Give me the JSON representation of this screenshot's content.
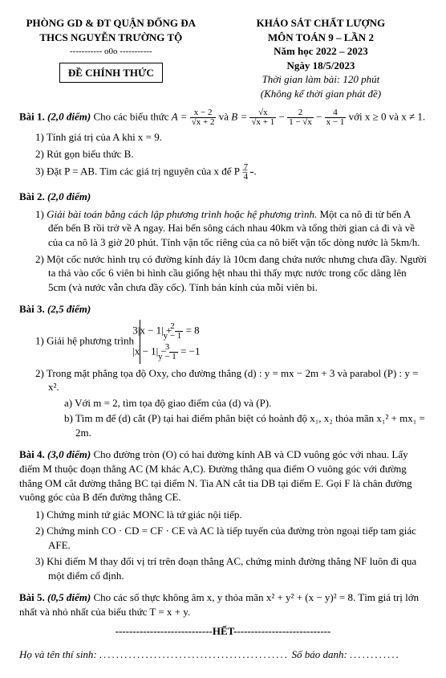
{
  "header": {
    "left1": "PHÒNG GD & ĐT QUẬN ĐỐNG ĐA",
    "left2": "THCS NGUYỄN TRƯỜNG TỘ",
    "ooo": "----------- o0o -----------",
    "box": "ĐỀ CHÍNH THỨC",
    "right1": "KHẢO SÁT CHẤT LƯỢNG",
    "right2": "MÔN TOÁN 9 – LẦN 2",
    "right3": "Năm học 2022 – 2023",
    "right4": "Ngày 18/5/2023",
    "right5": "Thời gian làm bài: 120 phút",
    "right6": "(Không kể thời gian phát đề)"
  },
  "b1": {
    "title": "Bài 1.",
    "pts": "(2,0 điểm)",
    "intro": " Cho các biểu thức ",
    "A": "A = ",
    "Anum": "x − 2",
    "Aden": "√x + 2",
    "and": " và ",
    "B": "B = ",
    "B1num": "√x",
    "B1den": "√x + 1",
    "B2num": "2",
    "B2den": "1 − √x",
    "B3num": "4",
    "B3den": "x − 1",
    "cond": " với x ≥ 0 và x ≠ 1.",
    "i1": "1)  Tính giá trị của A khi x = 9.",
    "i2": "2)  Rút gọn biểu thức B.",
    "i3a": "3)  Đặt P = AB. Tìm các giá trị nguyên của x để P = ",
    "i3num": "7",
    "i3den": "4",
    "i3b": "."
  },
  "b2": {
    "title": "Bài 2.",
    "pts": "(2,0 điểm)",
    "i1a": "1)  ",
    "i1em": "Giải bài toán bằng cách lập phương trình hoặc hệ phương trình.",
    "i1b": " Một ca nô đi từ bến A đến bến B rồi trở về A ngay. Hai bến sông cách nhau 40km và tổng thời gian cả đi và về của ca nô là 3 giờ 20 phút. Tính vận tốc riêng của ca nô biết vận tốc dòng nước là 5km/h.",
    "i2": "2)  Một cốc nước hình trụ có đường kính đáy là 10cm đang chứa nước nhưng chưa đầy. Người ta thả vào cốc 6 viên bi hình cầu giống hệt nhau thì thấy mực nước trong cốc dâng lên 5cm (và nước vẫn chưa đầy cốc). Tính bán kính của mỗi viên bi."
  },
  "b3": {
    "title": "Bài 3.",
    "pts": "(2,5 điểm)",
    "i1": "1)  Giải hệ phương trình ",
    "eq1a": "3|x − 1| + ",
    "eq1num": "2",
    "eq1den": "y − 1",
    "eq1b": " = 8",
    "eq2a": "|x − 1| − ",
    "eq2num": "3",
    "eq2den": "y − 1",
    "eq2b": " = −1",
    "i2": "2)  Trong mặt phẳng tọa độ Oxy, cho đường thẳng (d) : y = mx − 2m + 3 và parabol (P) : y = x².",
    "i2a": "a)  Với m = 2, tìm tọa độ giao điểm của (d) và (P).",
    "i2b": "b)  Tìm m để (d) cắt (P) tại hai điểm phân biệt có hoành độ x₁, x₂ thỏa mãn x₁² + mx₁ = 2m."
  },
  "b4": {
    "title": "Bài 4.",
    "pts": "(3,0 điểm)",
    "intro": " Cho đường tròn (O) có hai đường kính AB và CD vuông góc với nhau. Lấy điểm M thuộc đoạn thẳng AC (M khác A,C). Đường thẳng qua điểm O vuông góc với đường thẳng OM cắt đường thẳng BC tại điểm N. Tia AN cắt tia DB tại điểm E. Gọi F là chân đường vuông góc của B đến đường thẳng CE.",
    "i1": "1)  Chứng minh tứ giác MONC là tứ giác nội tiếp.",
    "i2": "2)  Chứng minh CO · CD = CF · CE và AC là tiếp tuyến của đường tròn ngoại tiếp tam giác AFE.",
    "i3": "3)  Khi điểm M thay đổi vị trí trên đoạn thẳng AC, chứng minh đường thẳng NF luôn đi qua một điểm cố định."
  },
  "b5": {
    "title": "Bài 5.",
    "pts": "(0,5 điểm)",
    "text": " Cho các số thực không âm x, y thỏa mãn x² + y² + (x − y)² = 8. Tìm giá trị lớn nhất và nhỏ nhất của biểu thức T = x + y."
  },
  "footer": {
    "het": "----------------------------HẾT----------------------------",
    "name": "Họ và tên thí sinh: ",
    "dots1": ".............................................",
    "sbd": " Số báo danh: ",
    "dots2": "............"
  }
}
